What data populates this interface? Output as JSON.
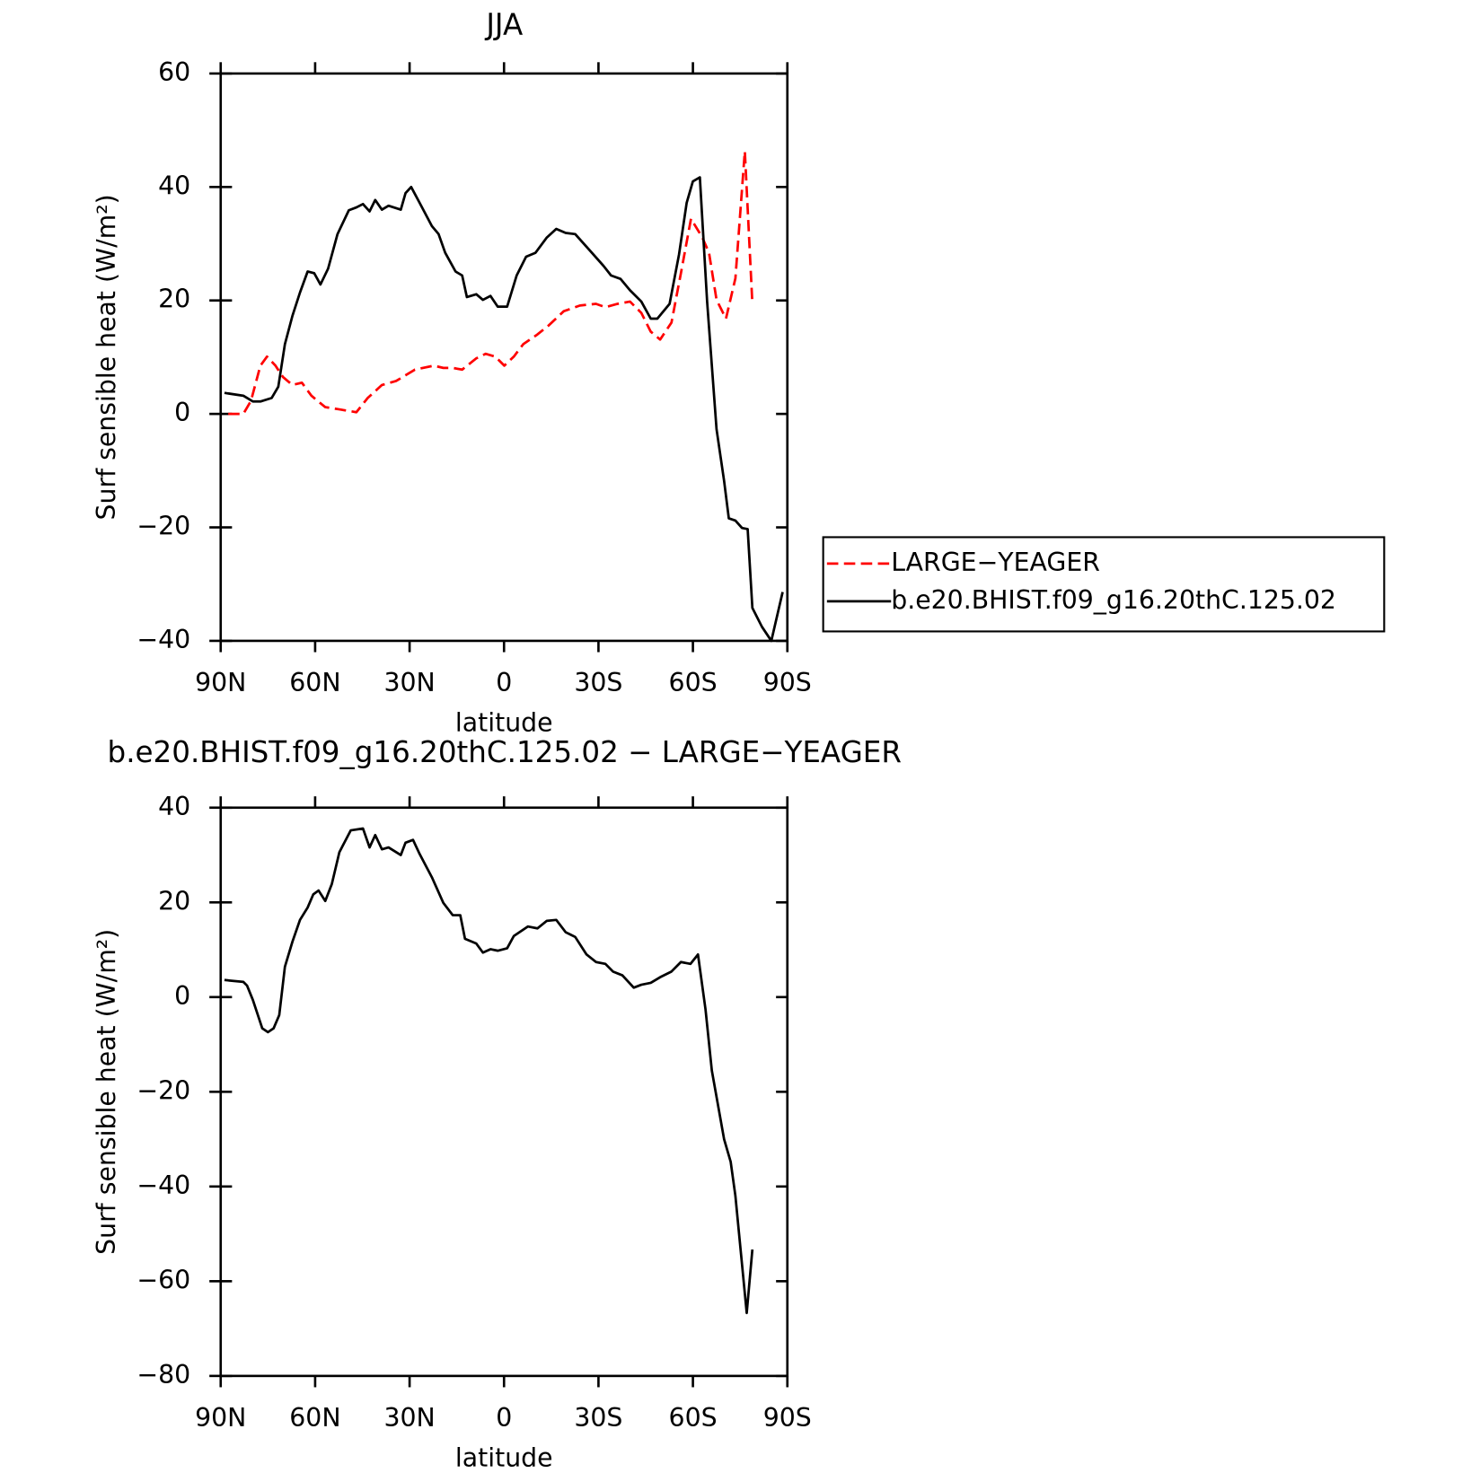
{
  "chart_data": [
    {
      "type": "line",
      "title": "JJA",
      "xlabel": "latitude",
      "ylabel": "Surf sensible heat (W/m²)",
      "xlim": [
        90,
        -90
      ],
      "xticks": [
        {
          "value": 90,
          "label": "90N"
        },
        {
          "value": 60,
          "label": "60N"
        },
        {
          "value": 30,
          "label": "30N"
        },
        0,
        {
          "value": -30,
          "label": "30S"
        },
        {
          "value": -60,
          "label": "60S"
        },
        {
          "value": -90,
          "label": "90S"
        }
      ],
      "ylim": [
        -40,
        60
      ],
      "yticks": [
        {
          "value": -40,
          "label": "−40"
        },
        {
          "value": -20,
          "label": "−20"
        },
        0,
        20,
        40,
        60
      ],
      "legend": "right",
      "series": [
        {
          "name": "LARGE−YEAGER",
          "color": "#ff0000",
          "line_style": "dashed",
          "x": [
            87.6,
            82.8,
            80.4,
            77.4,
            75.3,
            72.6,
            70.2,
            67.2,
            64.2,
            61.2,
            56.8,
            52.3,
            46.9,
            43.3,
            38.8,
            34.3,
            28.3,
            22.3,
            19.3,
            16.3,
            13.3,
            8.8,
            5.8,
            2.8,
            -0.1,
            -3.1,
            -6.1,
            -10.6,
            -14.2,
            -19.0,
            -24.1,
            -29.2,
            -32.2,
            -36.1,
            -40.0,
            -43.6,
            -46.6,
            -49.6,
            -53.2,
            -56.2,
            -59.4,
            -63.0,
            -65.1,
            -67.5,
            -70.5,
            -73.5,
            -76.5,
            -78.9
          ],
          "values": [
            0,
            0,
            2.3,
            8.5,
            10.1,
            8.5,
            6.5,
            5.1,
            5.5,
            3.2,
            1.2,
            0.8,
            0.3,
            2.8,
            5.1,
            5.8,
            7.8,
            8.5,
            8.1,
            8.1,
            7.8,
            9.8,
            10.6,
            10.1,
            8.5,
            10.1,
            12.3,
            14.0,
            15.6,
            18.1,
            19.1,
            19.4,
            18.8,
            19.4,
            19.8,
            17.8,
            14.5,
            13.1,
            16.1,
            24.8,
            34.4,
            31.1,
            28.4,
            20.1,
            16.8,
            23.9,
            46.3,
            19.4
          ]
        },
        {
          "name": "b.e20.BHIST.f09_g16.20thC.125.02",
          "color": "#000000",
          "line_style": "solid",
          "x": [
            88.8,
            82.8,
            79.8,
            77.4,
            73.8,
            71.7,
            69.6,
            67.2,
            64.8,
            62.4,
            60.3,
            58.3,
            55.9,
            52.9,
            49.3,
            46.9,
            44.8,
            42.7,
            40.9,
            38.8,
            36.7,
            32.8,
            31.3,
            29.5,
            26.8,
            22.9,
            20.8,
            18.7,
            15.4,
            13.3,
            11.8,
            8.8,
            6.7,
            4.3,
            2.0,
            -1.0,
            -4.0,
            -7.0,
            -10.0,
            -13.6,
            -16.6,
            -19.6,
            -22.6,
            -27.1,
            -31.6,
            -34.0,
            -37.0,
            -40.0,
            -43.6,
            -46.6,
            -48.7,
            -52.6,
            -55.6,
            -58.0,
            -60.0,
            -62.2,
            -64.5,
            -67.5,
            -69.9,
            -71.4,
            -73.5,
            -75.6,
            -77.4,
            -78.9,
            -81.9,
            -84.9,
            -88.5
          ],
          "values": [
            3.7,
            3.2,
            2.2,
            2.2,
            2.8,
            4.8,
            12.3,
            17.3,
            21.4,
            25.1,
            24.8,
            22.8,
            25.6,
            31.7,
            35.9,
            36.4,
            37.0,
            35.7,
            37.7,
            36.0,
            36.7,
            36.0,
            38.9,
            40.0,
            37.2,
            33.1,
            31.7,
            28.4,
            25.1,
            24.4,
            20.6,
            21.1,
            20.1,
            20.8,
            18.9,
            18.9,
            24.4,
            27.7,
            28.4,
            31.1,
            32.6,
            31.9,
            31.7,
            28.9,
            26.1,
            24.4,
            23.8,
            21.8,
            19.8,
            16.8,
            16.8,
            19.4,
            28.1,
            37.2,
            41.0,
            41.7,
            19.8,
            -2.7,
            -11.8,
            -18.4,
            -18.8,
            -20.1,
            -20.3,
            -34.2,
            -37.5,
            -40.0,
            -31.4
          ]
        }
      ]
    },
    {
      "type": "line",
      "title": "b.e20.BHIST.f09_g16.20thC.125.02 − LARGE−YEAGER",
      "xlabel": "latitude",
      "ylabel": "Surf sensible heat (W/m²)",
      "xlim": [
        90,
        -90
      ],
      "xticks": [
        {
          "value": 90,
          "label": "90N"
        },
        {
          "value": 60,
          "label": "60N"
        },
        {
          "value": 30,
          "label": "30N"
        },
        0,
        {
          "value": -30,
          "label": "30S"
        },
        {
          "value": -60,
          "label": "60S"
        },
        {
          "value": -90,
          "label": "90S"
        }
      ],
      "ylim": [
        -80,
        40
      ],
      "yticks": [
        {
          "value": -80,
          "label": "−80"
        },
        {
          "value": -60,
          "label": "−60"
        },
        {
          "value": -40,
          "label": "−40"
        },
        {
          "value": -20,
          "label": "−20"
        },
        0,
        20,
        40
      ],
      "series": [
        {
          "color": "#000000",
          "line_style": "solid",
          "x": [
            88.8,
            82.8,
            81.6,
            79.8,
            76.8,
            75.0,
            73.2,
            71.4,
            69.6,
            67.2,
            64.8,
            62.4,
            60.6,
            58.9,
            56.8,
            54.7,
            52.3,
            48.7,
            44.8,
            42.7,
            40.9,
            38.8,
            36.7,
            32.8,
            31.3,
            28.9,
            26.8,
            22.9,
            19.3,
            16.3,
            13.9,
            12.4,
            8.8,
            6.7,
            4.3,
            2.0,
            -1.0,
            -3.1,
            -7.6,
            -10.6,
            -13.6,
            -16.6,
            -19.6,
            -22.6,
            -26.2,
            -29.2,
            -32.2,
            -34.6,
            -37.6,
            -41.2,
            -43.6,
            -46.6,
            -49.6,
            -53.2,
            -56.2,
            -59.2,
            -61.6,
            -64.0,
            -66.0,
            -69.9,
            -72.0,
            -73.5,
            -77.1,
            -78.9
          ],
          "values": [
            3.6,
            3.2,
            2.4,
            -0.6,
            -6.6,
            -7.4,
            -6.6,
            -3.8,
            6.4,
            11.7,
            16.3,
            18.9,
            21.7,
            22.5,
            20.3,
            23.9,
            30.6,
            35.2,
            35.6,
            31.6,
            34.2,
            31.2,
            31.6,
            30.0,
            32.6,
            33.2,
            30.2,
            25.3,
            19.9,
            17.3,
            17.3,
            12.3,
            11.3,
            9.4,
            10.1,
            9.8,
            10.3,
            12.9,
            14.9,
            14.5,
            16.1,
            16.3,
            13.7,
            12.7,
            9.0,
            7.4,
            7.0,
            5.4,
            4.6,
            2.0,
            2.6,
            3.0,
            4.2,
            5.4,
            7.4,
            7.0,
            9.0,
            -2.6,
            -15.5,
            -30.0,
            -34.8,
            -42.0,
            -66.7,
            -53.3
          ]
        }
      ]
    }
  ]
}
